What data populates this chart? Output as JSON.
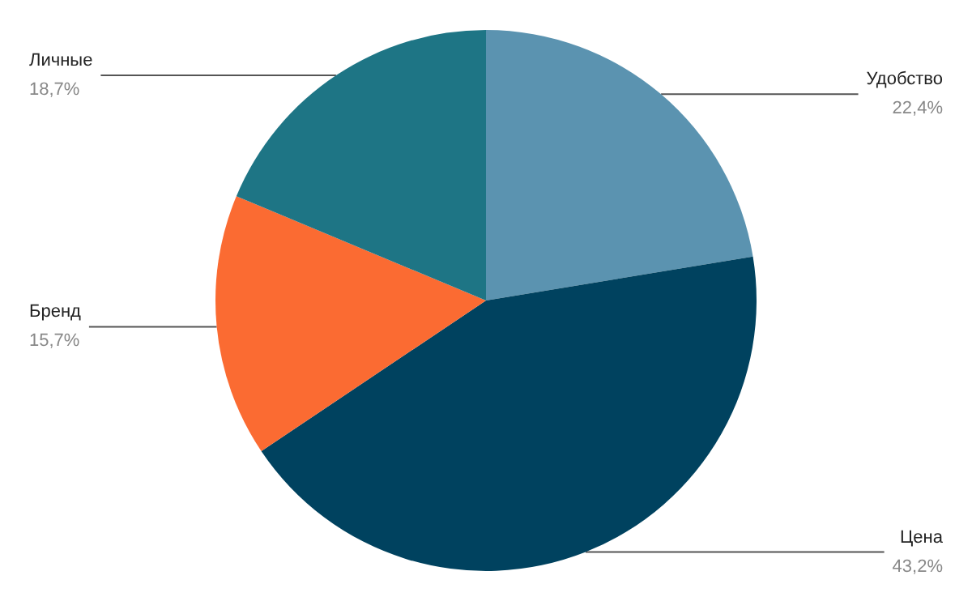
{
  "chart_data": {
    "type": "pie",
    "categories": [
      "Удобство",
      "Цена",
      "Бренд",
      "Личные"
    ],
    "values": [
      22.4,
      43.2,
      15.7,
      18.7
    ],
    "colors": [
      "#5b93b0",
      "#00425f",
      "#fb6b32",
      "#1e7585"
    ],
    "value_labels": [
      "22,4%",
      "43,2%",
      "15,7%",
      "18,7%"
    ],
    "legend": false
  }
}
